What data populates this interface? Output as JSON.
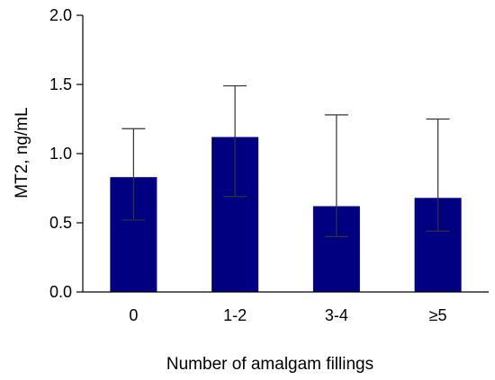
{
  "chart_data": {
    "type": "bar",
    "title": "",
    "xlabel": "Number of amalgam fillings",
    "ylabel": "MT2, ng/mL",
    "ylim": [
      0,
      2.0
    ],
    "yticks": [
      "0.0",
      "0.5",
      "1.0",
      "1.5",
      "2.0"
    ],
    "categories": [
      "0",
      "1-2",
      "3-4",
      "≥5"
    ],
    "series": [
      {
        "values": [
          0.83,
          1.12,
          0.62,
          0.68
        ],
        "error_upper": [
          1.18,
          1.49,
          1.28,
          1.25
        ],
        "error_lower": [
          0.52,
          0.69,
          0.4,
          0.44
        ]
      }
    ],
    "bar_color": "#000080",
    "error_bar_color": "#333333",
    "grid": false,
    "legend": "none"
  }
}
